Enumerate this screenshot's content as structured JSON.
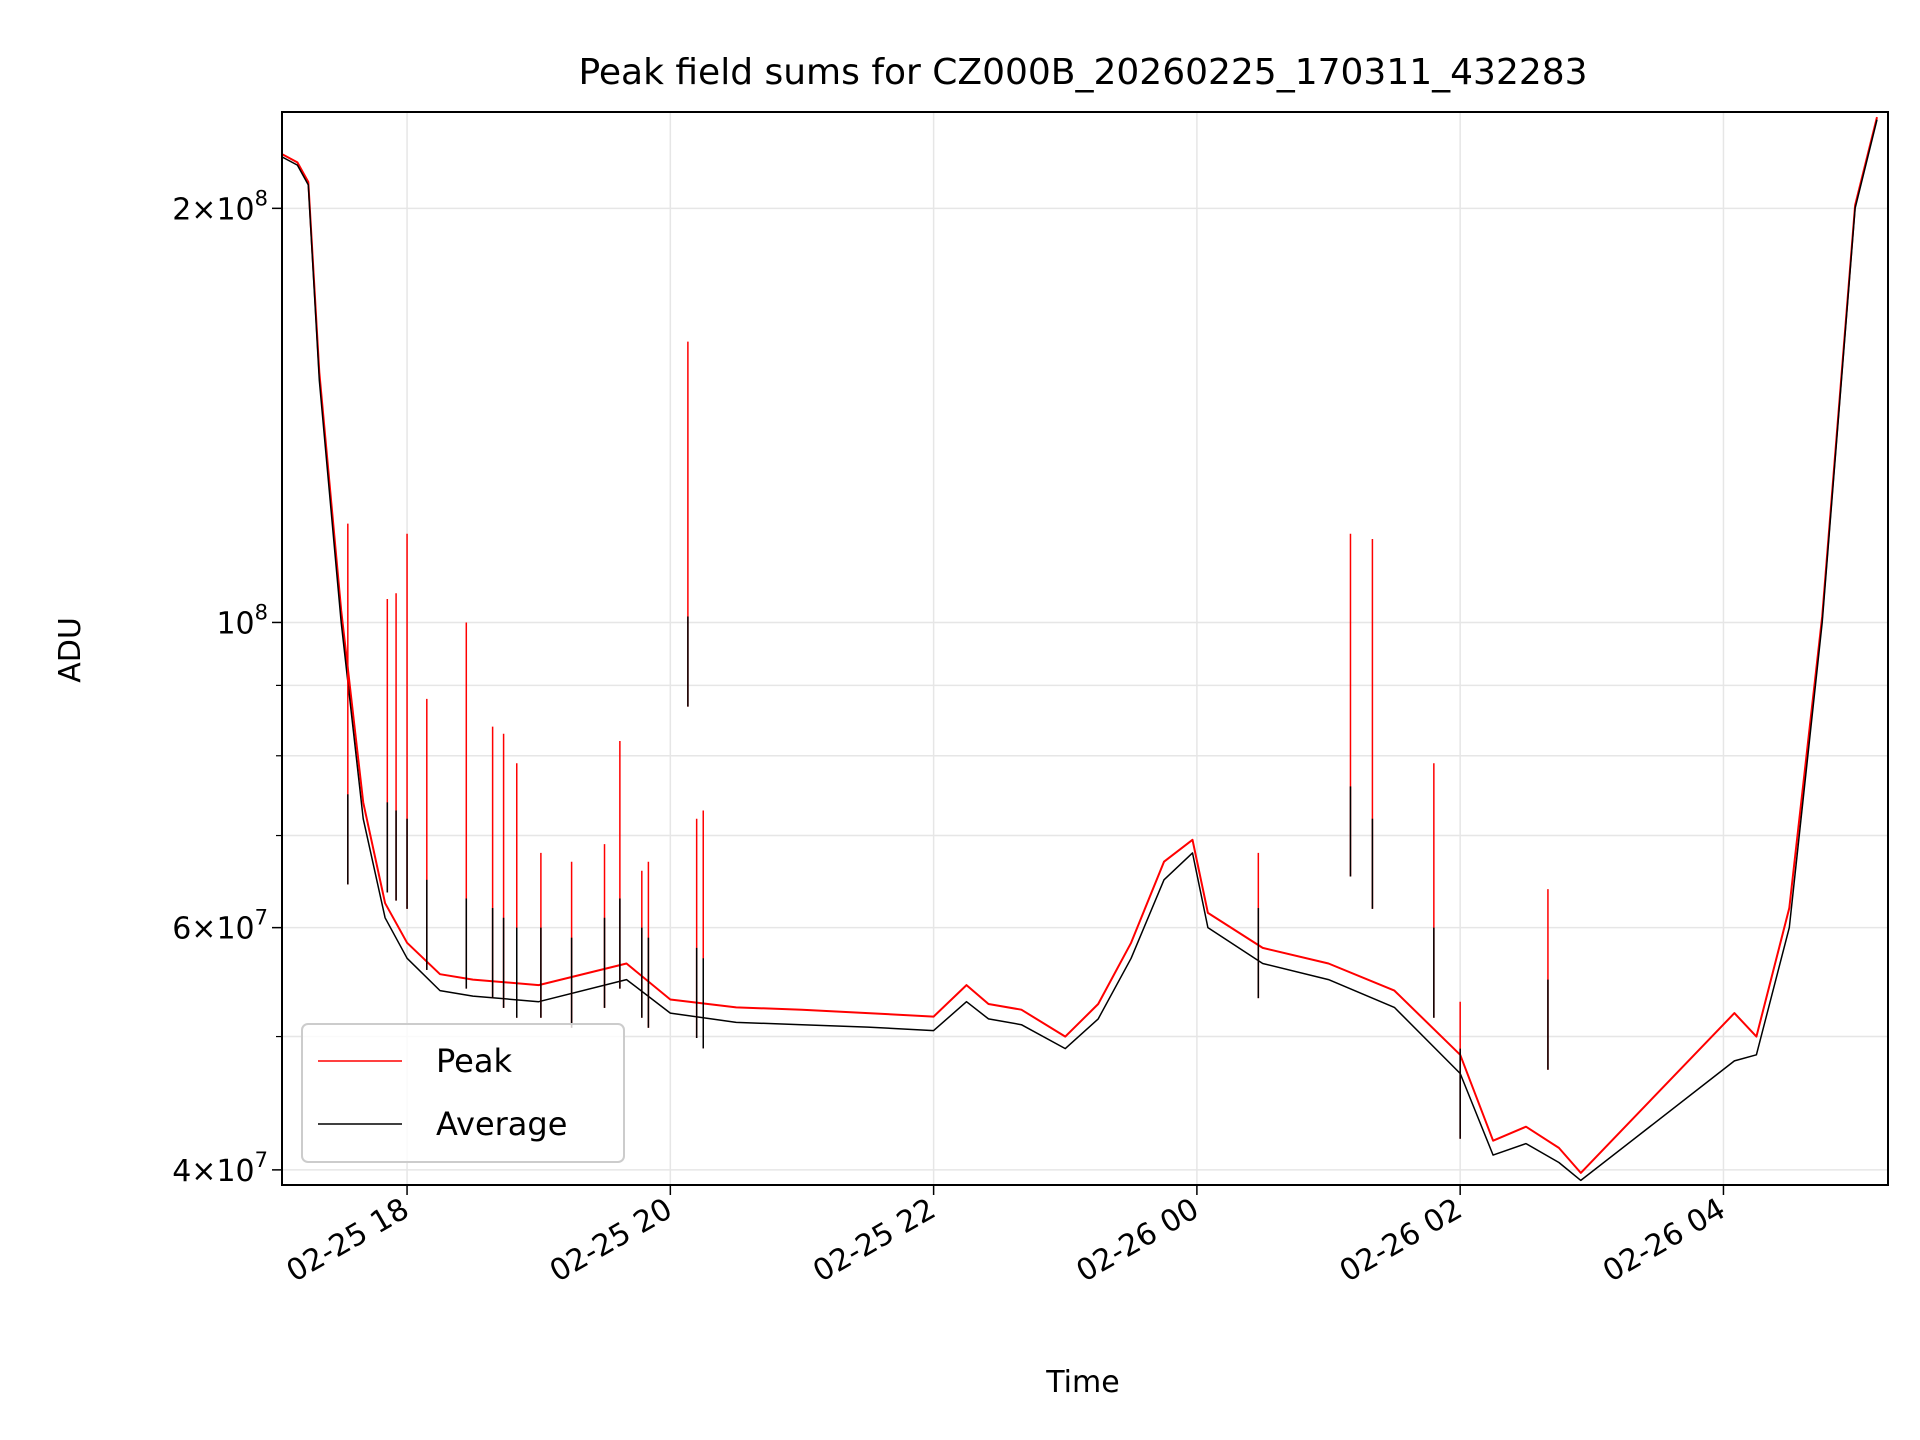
{
  "chart_data": {
    "type": "line",
    "title": "Peak field sums for CZ000B_20260225_170311_432283",
    "xlabel": "Time",
    "ylabel": "ADU",
    "yscale": "log",
    "grid": true,
    "legend_position": "lower-left",
    "xlim": [
      "2026-02-25 17:03",
      "2026-02-26 05:15"
    ],
    "ylim": [
      39000000,
      235000000
    ],
    "x_ticks": [
      {
        "value": "2026-02-25 18:00",
        "label": "02-25 18"
      },
      {
        "value": "2026-02-25 20:00",
        "label": "02-25 20"
      },
      {
        "value": "2026-02-25 22:00",
        "label": "02-25 22"
      },
      {
        "value": "2026-02-26 00:00",
        "label": "02-26 00"
      },
      {
        "value": "2026-02-26 02:00",
        "label": "02-26 02"
      },
      {
        "value": "2026-02-26 04:00",
        "label": "02-26 04"
      }
    ],
    "y_ticks": [
      {
        "value": 40000000,
        "mant": "4",
        "base": "10",
        "exp": "7"
      },
      {
        "value": 60000000,
        "mant": "6",
        "base": "10",
        "exp": "7"
      },
      {
        "value": 100000000,
        "mant": "",
        "base": "10",
        "exp": "8"
      },
      {
        "value": 200000000,
        "mant": "2",
        "base": "10",
        "exp": "8"
      }
    ],
    "y_minor_ticks": [
      50000000,
      70000000,
      80000000,
      90000000
    ],
    "series": [
      {
        "name": "Peak",
        "color": "#ff0000"
      },
      {
        "name": "Average",
        "color": "#000000"
      }
    ],
    "average_series": {
      "x": [
        "2026-02-25 17:03",
        "2026-02-25 17:10",
        "2026-02-25 17:15",
        "2026-02-25 17:20",
        "2026-02-25 17:30",
        "2026-02-25 17:40",
        "2026-02-25 17:50",
        "2026-02-25 18:00",
        "2026-02-25 18:15",
        "2026-02-25 18:30",
        "2026-02-25 19:00",
        "2026-02-25 19:40",
        "2026-02-25 20:00",
        "2026-02-25 20:30",
        "2026-02-25 21:00",
        "2026-02-25 21:30",
        "2026-02-25 22:00",
        "2026-02-25 22:15",
        "2026-02-25 22:25",
        "2026-02-25 22:40",
        "2026-02-25 23:00",
        "2026-02-25 23:15",
        "2026-02-25 23:30",
        "2026-02-25 23:45",
        "2026-02-25 23:58",
        "2026-02-26 00:05",
        "2026-02-26 00:30",
        "2026-02-26 01:00",
        "2026-02-26 01:30",
        "2026-02-26 02:00",
        "2026-02-26 02:15",
        "2026-02-26 02:30",
        "2026-02-26 02:45",
        "2026-02-26 02:55",
        "2026-02-26 04:05",
        "2026-02-26 04:15",
        "2026-02-26 04:30",
        "2026-02-26 04:45",
        "2026-02-26 05:00",
        "2026-02-26 05:10"
      ],
      "y": [
        218000000,
        215000000,
        208000000,
        150000000,
        100000000,
        72000000,
        61000000,
        57000000,
        54000000,
        53500000,
        53000000,
        55000000,
        52000000,
        51200000,
        51000000,
        50800000,
        50500000,
        53000000,
        51500000,
        51000000,
        49000000,
        51500000,
        57000000,
        65000000,
        68000000,
        60000000,
        56500000,
        55000000,
        52500000,
        47000000,
        41000000,
        41800000,
        40500000,
        39300000,
        48000000,
        48500000,
        60000000,
        100000000,
        200000000,
        232000000
      ]
    },
    "peak_series": {
      "x": [
        "2026-02-25 17:03",
        "2026-02-25 17:10",
        "2026-02-25 17:15",
        "2026-02-25 17:20",
        "2026-02-25 17:30",
        "2026-02-25 17:40",
        "2026-02-25 17:50",
        "2026-02-25 18:00",
        "2026-02-25 18:15",
        "2026-02-25 18:30",
        "2026-02-25 19:00",
        "2026-02-25 19:40",
        "2026-02-25 20:00",
        "2026-02-25 20:30",
        "2026-02-25 21:00",
        "2026-02-25 21:30",
        "2026-02-25 22:00",
        "2026-02-25 22:15",
        "2026-02-25 22:25",
        "2026-02-25 22:40",
        "2026-02-25 23:00",
        "2026-02-25 23:15",
        "2026-02-25 23:30",
        "2026-02-25 23:45",
        "2026-02-25 23:58",
        "2026-02-26 00:05",
        "2026-02-26 00:30",
        "2026-02-26 01:00",
        "2026-02-26 01:30",
        "2026-02-26 02:00",
        "2026-02-26 02:15",
        "2026-02-26 02:30",
        "2026-02-26 02:45",
        "2026-02-26 02:55",
        "2026-02-26 04:05",
        "2026-02-26 04:15",
        "2026-02-26 04:30",
        "2026-02-26 04:45",
        "2026-02-26 05:00",
        "2026-02-26 05:10"
      ],
      "y": [
        219000000,
        216000000,
        209000000,
        152000000,
        102000000,
        74000000,
        62500000,
        58500000,
        55500000,
        55000000,
        54500000,
        56500000,
        53200000,
        52500000,
        52300000,
        52000000,
        51700000,
        54500000,
        52800000,
        52300000,
        50000000,
        52800000,
        58500000,
        67000000,
        69500000,
        61500000,
        58000000,
        56500000,
        54000000,
        48500000,
        42000000,
        43000000,
        41500000,
        39800000,
        52000000,
        50000000,
        62000000,
        101000000,
        201000000,
        233000000
      ]
    },
    "spikes": [
      {
        "x": "2026-02-25 17:33",
        "peak": 118000000,
        "avg": 75000000
      },
      {
        "x": "2026-02-25 17:51",
        "peak": 104000000,
        "avg": 74000000
      },
      {
        "x": "2026-02-25 17:55",
        "peak": 105000000,
        "avg": 73000000
      },
      {
        "x": "2026-02-25 18:00",
        "peak": 116000000,
        "avg": 72000000
      },
      {
        "x": "2026-02-25 18:09",
        "peak": 88000000,
        "avg": 65000000
      },
      {
        "x": "2026-02-25 18:27",
        "peak": 100000000,
        "avg": 63000000
      },
      {
        "x": "2026-02-25 18:39",
        "peak": 84000000,
        "avg": 62000000
      },
      {
        "x": "2026-02-25 18:44",
        "peak": 83000000,
        "avg": 61000000
      },
      {
        "x": "2026-02-25 18:50",
        "peak": 79000000,
        "avg": 60000000
      },
      {
        "x": "2026-02-25 19:01",
        "peak": 68000000,
        "avg": 60000000
      },
      {
        "x": "2026-02-25 19:15",
        "peak": 67000000,
        "avg": 59000000
      },
      {
        "x": "2026-02-25 19:30",
        "peak": 69000000,
        "avg": 61000000
      },
      {
        "x": "2026-02-25 19:37",
        "peak": 82000000,
        "avg": 63000000
      },
      {
        "x": "2026-02-25 19:47",
        "peak": 66000000,
        "avg": 60000000
      },
      {
        "x": "2026-02-25 19:50",
        "peak": 67000000,
        "avg": 59000000
      },
      {
        "x": "2026-02-25 20:08",
        "peak": 160000000,
        "avg": 101000000
      },
      {
        "x": "2026-02-25 20:12",
        "peak": 72000000,
        "avg": 58000000
      },
      {
        "x": "2026-02-25 20:15",
        "peak": 73000000,
        "avg": 57000000
      },
      {
        "x": "2026-02-26 00:28",
        "peak": 68000000,
        "avg": 62000000
      },
      {
        "x": "2026-02-26 01:10",
        "peak": 116000000,
        "avg": 76000000
      },
      {
        "x": "2026-02-26 01:20",
        "peak": 115000000,
        "avg": 72000000
      },
      {
        "x": "2026-02-26 01:48",
        "peak": 79000000,
        "avg": 60000000
      },
      {
        "x": "2026-02-26 02:00",
        "peak": 53000000,
        "avg": 49000000
      },
      {
        "x": "2026-02-26 02:40",
        "peak": 64000000,
        "avg": 55000000
      }
    ]
  }
}
